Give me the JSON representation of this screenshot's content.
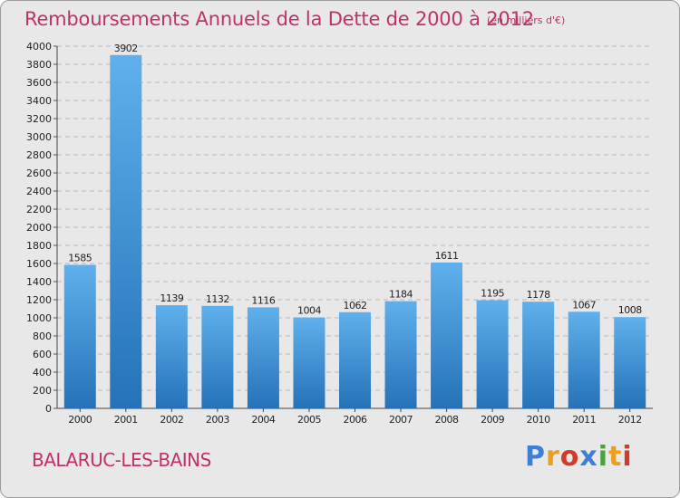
{
  "header": {
    "title": "Remboursements Annuels de la Dette de 2000 à 2012",
    "subtitle": "(en milliers d'€)"
  },
  "footer": {
    "city": "BALARUC-LES-BAINS",
    "logo_text": "Proxiti",
    "logo_colors": [
      "#3d7fd0",
      "#e8a020",
      "#d23a2a",
      "#3d7fd0",
      "#49a23a",
      "#e8a020",
      "#d23a2a"
    ]
  },
  "colors": {
    "title": "#c0306a",
    "bar_top": "#5fb0ec",
    "bar_bottom": "#2572b8",
    "background": "#e8e8e8"
  },
  "chart_data": {
    "type": "bar",
    "categories": [
      "2000",
      "2001",
      "2002",
      "2003",
      "2004",
      "2005",
      "2006",
      "2007",
      "2008",
      "2009",
      "2010",
      "2011",
      "2012"
    ],
    "values": [
      1585,
      3902,
      1139,
      1132,
      1116,
      1004,
      1062,
      1184,
      1611,
      1195,
      1178,
      1067,
      1008
    ],
    "title": "Remboursements Annuels de la Dette de 2000 à 2012",
    "ylim": [
      0,
      4000
    ],
    "yticks": [
      0,
      200,
      400,
      600,
      800,
      1000,
      1200,
      1400,
      1600,
      1800,
      2000,
      2200,
      2400,
      2600,
      2800,
      3000,
      3200,
      3400,
      3600,
      3800,
      4000
    ],
    "grid": true,
    "data_labels": true
  }
}
